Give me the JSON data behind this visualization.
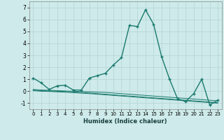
{
  "xlabel": "Humidex (Indice chaleur)",
  "x_values": [
    0,
    1,
    2,
    3,
    4,
    5,
    6,
    7,
    8,
    9,
    10,
    11,
    12,
    13,
    14,
    15,
    16,
    17,
    18,
    19,
    20,
    21,
    22,
    23
  ],
  "line1": [
    1.1,
    0.7,
    0.15,
    0.45,
    0.5,
    0.1,
    0.1,
    1.1,
    1.3,
    1.5,
    2.2,
    2.8,
    5.5,
    5.4,
    6.8,
    5.6,
    2.9,
    1.0,
    -0.65,
    -0.85,
    -0.2,
    1.0,
    -1.15,
    -0.75
  ],
  "line2": [
    0.15,
    0.1,
    0.08,
    0.05,
    0.02,
    0.0,
    -0.02,
    -0.05,
    -0.08,
    -0.1,
    -0.15,
    -0.2,
    -0.25,
    -0.3,
    -0.35,
    -0.4,
    -0.45,
    -0.5,
    -0.55,
    -0.6,
    -0.65,
    -0.7,
    -0.75,
    -0.8
  ],
  "line3": [
    0.1,
    0.05,
    0.02,
    0.0,
    -0.02,
    -0.05,
    -0.1,
    -0.15,
    -0.2,
    -0.25,
    -0.3,
    -0.35,
    -0.4,
    -0.45,
    -0.5,
    -0.55,
    -0.6,
    -0.65,
    -0.7,
    -0.75,
    -0.8,
    -0.85,
    -0.9,
    -0.95
  ],
  "line4": [
    0.05,
    0.0,
    -0.02,
    -0.05,
    -0.08,
    -0.12,
    -0.16,
    -0.2,
    -0.25,
    -0.3,
    -0.35,
    -0.4,
    -0.45,
    -0.5,
    -0.55,
    -0.6,
    -0.65,
    -0.7,
    -0.75,
    -0.8,
    -0.85,
    -0.9,
    -0.95,
    -1.0
  ],
  "line_color": "#1a7a6e",
  "bg_color": "#ceeaea",
  "grid_color": "#b8d8d8",
  "ylim": [
    -1.5,
    7.5
  ],
  "yticks": [
    -1,
    0,
    1,
    2,
    3,
    4,
    5,
    6,
    7
  ],
  "xticks": [
    0,
    1,
    2,
    3,
    4,
    5,
    6,
    7,
    8,
    9,
    10,
    11,
    12,
    13,
    14,
    15,
    16,
    17,
    18,
    19,
    20,
    21,
    22,
    23
  ]
}
